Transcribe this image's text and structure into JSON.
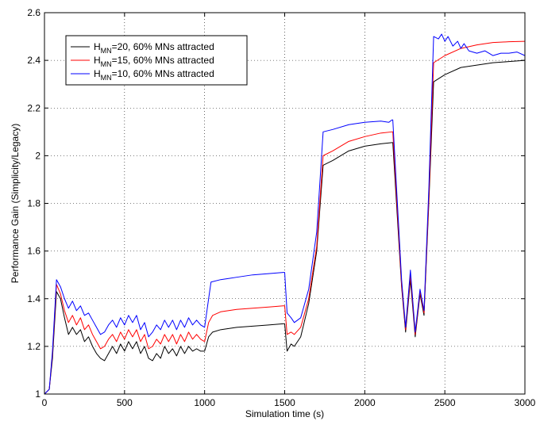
{
  "chart_data": {
    "type": "line",
    "title": "",
    "xlabel": "Simulation time (s)",
    "ylabel": "Performance Gain (Simplicity/Legacy)",
    "xlim": [
      0,
      3000
    ],
    "ylim": [
      1,
      2.6
    ],
    "xticks": [
      0,
      500,
      1000,
      1500,
      2000,
      2500,
      3000
    ],
    "yticks": [
      1,
      1.2,
      1.4,
      1.6,
      1.8,
      2,
      2.2,
      2.4,
      2.6
    ],
    "xtick_labels": [
      "0",
      "500",
      "1000",
      "1500",
      "2000",
      "2500",
      "3000"
    ],
    "ytick_labels": [
      "1",
      "1.2",
      "1.4",
      "1.6",
      "1.8",
      "2",
      "2.2",
      "2.4",
      "2.6"
    ],
    "grid": true,
    "legend_position": "top-left",
    "series": [
      {
        "name_main": "H",
        "name_sub": "MN",
        "name_rest": "=20, 60% MNs attracted",
        "color": "#000000",
        "points": [
          [
            0,
            1.0
          ],
          [
            30,
            1.02
          ],
          [
            50,
            1.15
          ],
          [
            75,
            1.43
          ],
          [
            100,
            1.4
          ],
          [
            125,
            1.32
          ],
          [
            150,
            1.25
          ],
          [
            175,
            1.28
          ],
          [
            200,
            1.25
          ],
          [
            225,
            1.27
          ],
          [
            250,
            1.22
          ],
          [
            275,
            1.24
          ],
          [
            300,
            1.2
          ],
          [
            325,
            1.17
          ],
          [
            350,
            1.15
          ],
          [
            375,
            1.14
          ],
          [
            400,
            1.17
          ],
          [
            425,
            1.2
          ],
          [
            450,
            1.17
          ],
          [
            475,
            1.21
          ],
          [
            500,
            1.18
          ],
          [
            525,
            1.22
          ],
          [
            550,
            1.19
          ],
          [
            575,
            1.22
          ],
          [
            600,
            1.17
          ],
          [
            625,
            1.2
          ],
          [
            650,
            1.15
          ],
          [
            675,
            1.14
          ],
          [
            700,
            1.17
          ],
          [
            725,
            1.15
          ],
          [
            750,
            1.2
          ],
          [
            775,
            1.17
          ],
          [
            800,
            1.19
          ],
          [
            825,
            1.16
          ],
          [
            850,
            1.2
          ],
          [
            875,
            1.17
          ],
          [
            900,
            1.2
          ],
          [
            925,
            1.18
          ],
          [
            950,
            1.19
          ],
          [
            975,
            1.18
          ],
          [
            1000,
            1.18
          ],
          [
            1025,
            1.24
          ],
          [
            1050,
            1.26
          ],
          [
            1100,
            1.27
          ],
          [
            1150,
            1.275
          ],
          [
            1200,
            1.28
          ],
          [
            1300,
            1.285
          ],
          [
            1400,
            1.29
          ],
          [
            1490,
            1.295
          ],
          [
            1500,
            1.295
          ],
          [
            1515,
            1.18
          ],
          [
            1540,
            1.21
          ],
          [
            1560,
            1.2
          ],
          [
            1600,
            1.24
          ],
          [
            1650,
            1.38
          ],
          [
            1700,
            1.6
          ],
          [
            1740,
            1.96
          ],
          [
            1800,
            1.98
          ],
          [
            1900,
            2.02
          ],
          [
            2000,
            2.04
          ],
          [
            2100,
            2.05
          ],
          [
            2170,
            2.055
          ],
          [
            2175,
            2.055
          ],
          [
            2230,
            1.45
          ],
          [
            2255,
            1.26
          ],
          [
            2285,
            1.48
          ],
          [
            2315,
            1.24
          ],
          [
            2345,
            1.42
          ],
          [
            2370,
            1.33
          ],
          [
            2400,
            1.8
          ],
          [
            2430,
            2.31
          ],
          [
            2500,
            2.34
          ],
          [
            2600,
            2.37
          ],
          [
            2700,
            2.38
          ],
          [
            2800,
            2.39
          ],
          [
            2900,
            2.395
          ],
          [
            3000,
            2.4
          ]
        ]
      },
      {
        "name_main": "H",
        "name_sub": "MN",
        "name_rest": "=15, 60% MNs attracted",
        "color": "#ff0000",
        "points": [
          [
            0,
            1.0
          ],
          [
            30,
            1.02
          ],
          [
            50,
            1.17
          ],
          [
            75,
            1.46
          ],
          [
            100,
            1.42
          ],
          [
            125,
            1.35
          ],
          [
            150,
            1.3
          ],
          [
            175,
            1.33
          ],
          [
            200,
            1.29
          ],
          [
            225,
            1.32
          ],
          [
            250,
            1.27
          ],
          [
            275,
            1.29
          ],
          [
            300,
            1.25
          ],
          [
            325,
            1.22
          ],
          [
            350,
            1.19
          ],
          [
            375,
            1.2
          ],
          [
            400,
            1.23
          ],
          [
            425,
            1.25
          ],
          [
            450,
            1.22
          ],
          [
            475,
            1.26
          ],
          [
            500,
            1.23
          ],
          [
            525,
            1.27
          ],
          [
            550,
            1.24
          ],
          [
            575,
            1.27
          ],
          [
            600,
            1.22
          ],
          [
            625,
            1.25
          ],
          [
            650,
            1.19
          ],
          [
            675,
            1.2
          ],
          [
            700,
            1.23
          ],
          [
            725,
            1.21
          ],
          [
            750,
            1.25
          ],
          [
            775,
            1.22
          ],
          [
            800,
            1.25
          ],
          [
            825,
            1.21
          ],
          [
            850,
            1.25
          ],
          [
            875,
            1.22
          ],
          [
            900,
            1.26
          ],
          [
            925,
            1.23
          ],
          [
            950,
            1.25
          ],
          [
            975,
            1.23
          ],
          [
            1000,
            1.22
          ],
          [
            1025,
            1.3
          ],
          [
            1050,
            1.33
          ],
          [
            1100,
            1.345
          ],
          [
            1150,
            1.35
          ],
          [
            1200,
            1.355
          ],
          [
            1300,
            1.36
          ],
          [
            1400,
            1.365
          ],
          [
            1490,
            1.37
          ],
          [
            1500,
            1.37
          ],
          [
            1515,
            1.25
          ],
          [
            1540,
            1.26
          ],
          [
            1560,
            1.25
          ],
          [
            1600,
            1.28
          ],
          [
            1650,
            1.4
          ],
          [
            1700,
            1.62
          ],
          [
            1740,
            2.0
          ],
          [
            1800,
            2.02
          ],
          [
            1900,
            2.06
          ],
          [
            2000,
            2.08
          ],
          [
            2100,
            2.095
          ],
          [
            2170,
            2.1
          ],
          [
            2175,
            2.1
          ],
          [
            2230,
            1.46
          ],
          [
            2255,
            1.27
          ],
          [
            2285,
            1.5
          ],
          [
            2315,
            1.25
          ],
          [
            2345,
            1.43
          ],
          [
            2370,
            1.34
          ],
          [
            2400,
            1.82
          ],
          [
            2430,
            2.39
          ],
          [
            2500,
            2.42
          ],
          [
            2600,
            2.45
          ],
          [
            2700,
            2.465
          ],
          [
            2800,
            2.475
          ],
          [
            2900,
            2.478
          ],
          [
            3000,
            2.48
          ]
        ]
      },
      {
        "name_main": "H",
        "name_sub": "MN",
        "name_rest": "=10, 60% MNs attracted",
        "color": "#0000ff",
        "points": [
          [
            0,
            1.0
          ],
          [
            30,
            1.02
          ],
          [
            50,
            1.18
          ],
          [
            75,
            1.48
          ],
          [
            100,
            1.45
          ],
          [
            125,
            1.4
          ],
          [
            150,
            1.36
          ],
          [
            175,
            1.39
          ],
          [
            200,
            1.35
          ],
          [
            225,
            1.37
          ],
          [
            250,
            1.33
          ],
          [
            275,
            1.34
          ],
          [
            300,
            1.31
          ],
          [
            325,
            1.28
          ],
          [
            350,
            1.25
          ],
          [
            375,
            1.26
          ],
          [
            400,
            1.29
          ],
          [
            425,
            1.31
          ],
          [
            450,
            1.28
          ],
          [
            475,
            1.32
          ],
          [
            500,
            1.29
          ],
          [
            525,
            1.33
          ],
          [
            550,
            1.3
          ],
          [
            575,
            1.33
          ],
          [
            600,
            1.27
          ],
          [
            625,
            1.3
          ],
          [
            650,
            1.24
          ],
          [
            675,
            1.26
          ],
          [
            700,
            1.29
          ],
          [
            725,
            1.27
          ],
          [
            750,
            1.31
          ],
          [
            775,
            1.28
          ],
          [
            800,
            1.31
          ],
          [
            825,
            1.27
          ],
          [
            850,
            1.31
          ],
          [
            875,
            1.28
          ],
          [
            900,
            1.32
          ],
          [
            925,
            1.29
          ],
          [
            950,
            1.31
          ],
          [
            975,
            1.29
          ],
          [
            1000,
            1.28
          ],
          [
            1025,
            1.4
          ],
          [
            1040,
            1.47
          ],
          [
            1100,
            1.48
          ],
          [
            1150,
            1.485
          ],
          [
            1200,
            1.49
          ],
          [
            1300,
            1.5
          ],
          [
            1400,
            1.505
          ],
          [
            1490,
            1.51
          ],
          [
            1500,
            1.51
          ],
          [
            1515,
            1.34
          ],
          [
            1540,
            1.32
          ],
          [
            1560,
            1.3
          ],
          [
            1600,
            1.32
          ],
          [
            1650,
            1.44
          ],
          [
            1700,
            1.68
          ],
          [
            1740,
            2.1
          ],
          [
            1800,
            2.11
          ],
          [
            1900,
            2.13
          ],
          [
            2000,
            2.14
          ],
          [
            2100,
            2.145
          ],
          [
            2150,
            2.14
          ],
          [
            2170,
            2.15
          ],
          [
            2175,
            2.15
          ],
          [
            2230,
            1.48
          ],
          [
            2255,
            1.28
          ],
          [
            2285,
            1.52
          ],
          [
            2315,
            1.26
          ],
          [
            2345,
            1.44
          ],
          [
            2370,
            1.35
          ],
          [
            2400,
            1.86
          ],
          [
            2430,
            2.5
          ],
          [
            2460,
            2.49
          ],
          [
            2480,
            2.51
          ],
          [
            2500,
            2.48
          ],
          [
            2520,
            2.5
          ],
          [
            2550,
            2.46
          ],
          [
            2580,
            2.48
          ],
          [
            2600,
            2.45
          ],
          [
            2620,
            2.47
          ],
          [
            2650,
            2.44
          ],
          [
            2700,
            2.43
          ],
          [
            2750,
            2.44
          ],
          [
            2800,
            2.42
          ],
          [
            2850,
            2.43
          ],
          [
            2900,
            2.43
          ],
          [
            2950,
            2.435
          ],
          [
            3000,
            2.42
          ]
        ]
      }
    ]
  }
}
